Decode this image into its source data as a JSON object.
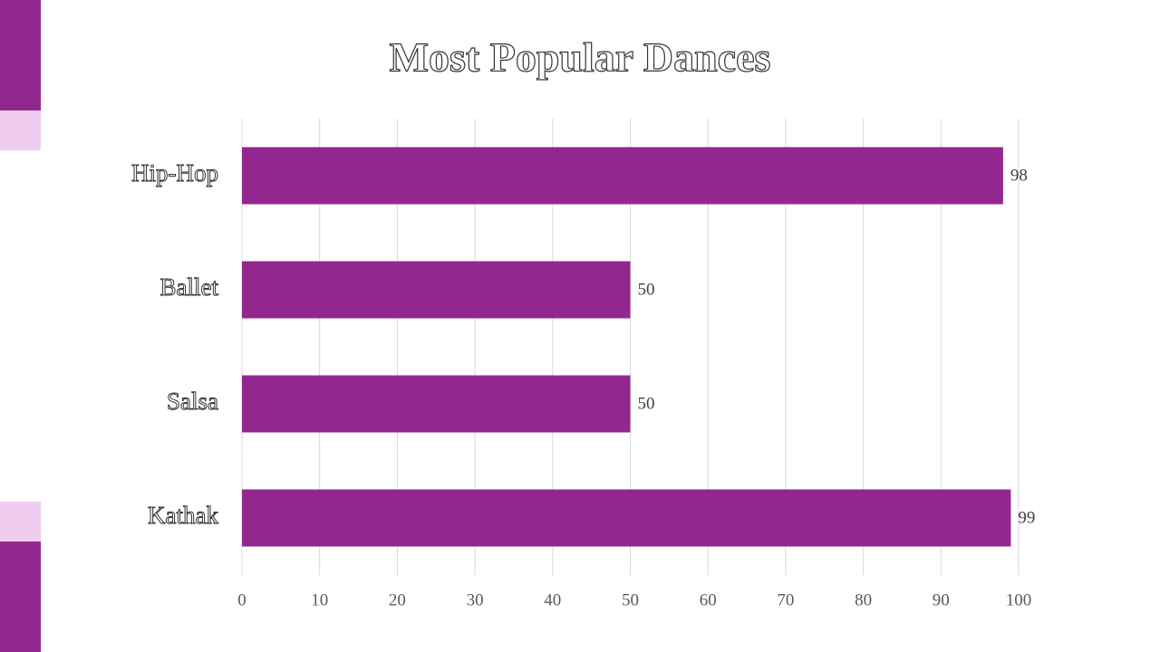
{
  "chart_data": {
    "type": "bar",
    "orientation": "horizontal",
    "title": "Most Popular Dances",
    "categories": [
      "Hip-Hop",
      "Ballet",
      "Salsa",
      "Kathak"
    ],
    "values": [
      98,
      50,
      50,
      99
    ],
    "color": "#92278f",
    "xlim": [
      0,
      100
    ],
    "xticks": [
      0,
      10,
      20,
      30,
      40,
      50,
      60,
      70,
      80,
      90,
      100
    ],
    "grid": true
  }
}
